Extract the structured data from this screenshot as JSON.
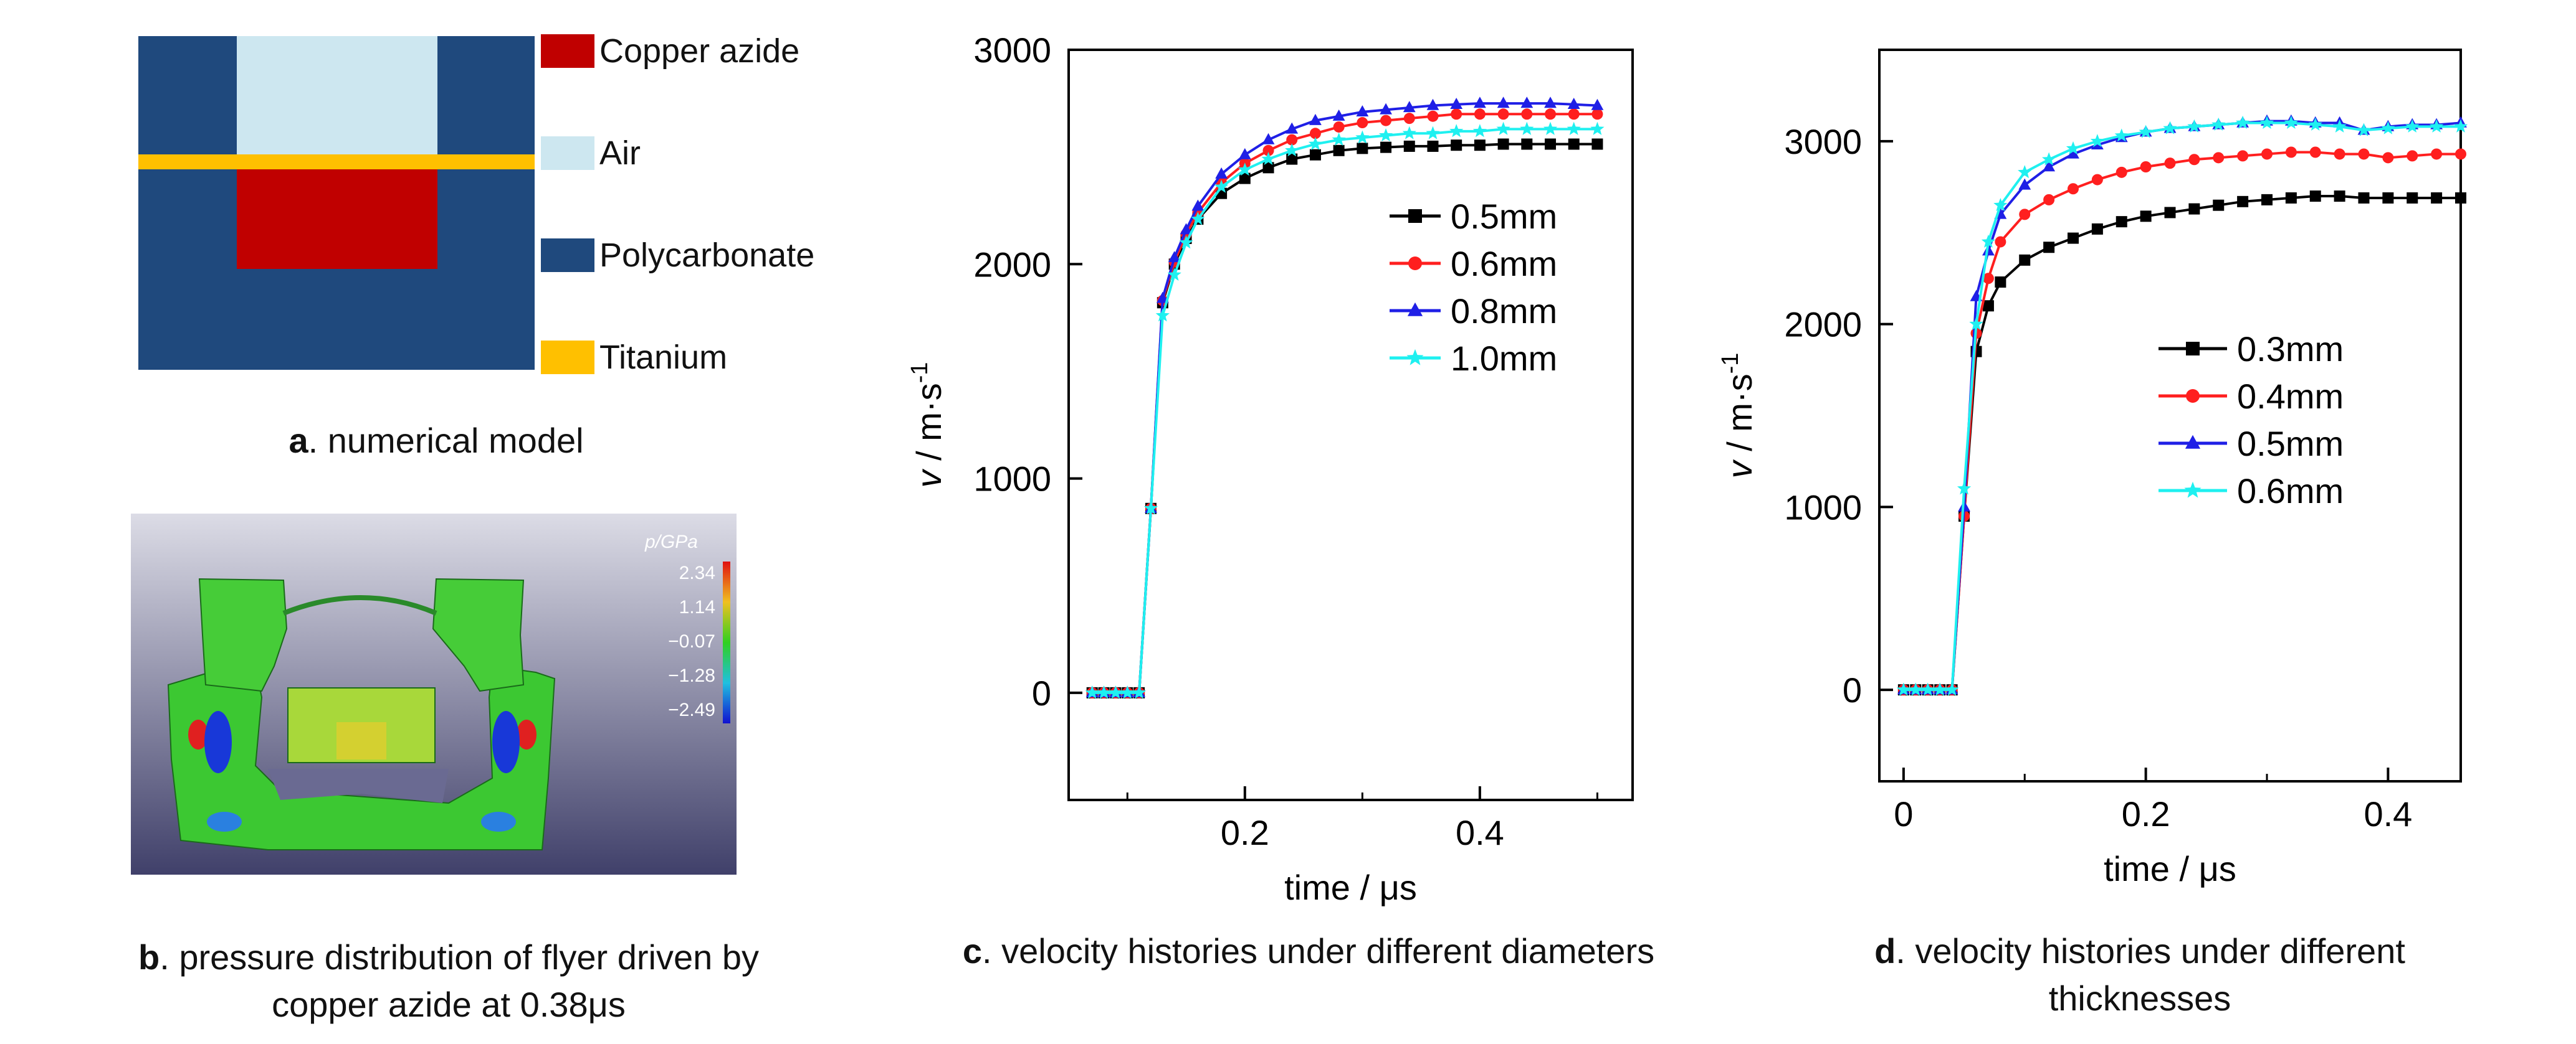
{
  "panel_a": {
    "letter": "a",
    "caption": ". numerical model",
    "legend": [
      {
        "label": "Copper azide",
        "color": "#c00000"
      },
      {
        "label": "Air",
        "color": "#cde7f0"
      },
      {
        "label": "Polycarbonate",
        "color": "#1f497d"
      },
      {
        "label": "Titanium",
        "color": "#ffc000"
      }
    ]
  },
  "panel_b": {
    "letter": "b",
    "caption_line1": ". pressure distribution of flyer driven by",
    "caption_line2": "copper azide at 0.38μs",
    "colorbar_title": "p/GPa",
    "colorbar_ticks": [
      "2.34",
      "1.14",
      "−0.07",
      "−1.28",
      "−2.49"
    ]
  },
  "chart_data": [
    {
      "id": "c",
      "type": "line",
      "letter": "c",
      "caption": ". velocity histories under different diameters",
      "xlabel": "time / μs",
      "ylabel_v": "v",
      "ylabel_unit": " / m·s",
      "ylabel_exp": "-1",
      "xlim": [
        0.05,
        0.53
      ],
      "ylim": [
        -500,
        3000
      ],
      "xticks": [
        0.2,
        0.4
      ],
      "xtick_labels": [
        "0.2",
        "0.4"
      ],
      "yticks": [
        0,
        1000,
        2000,
        3000
      ],
      "ytick_labels": [
        "0",
        "1000",
        "2000",
        "3000"
      ],
      "series": [
        {
          "name": "0.5mm",
          "color": "#000000",
          "marker": "square",
          "x": [
            0.07,
            0.08,
            0.09,
            0.1,
            0.11,
            0.12,
            0.13,
            0.14,
            0.15,
            0.16,
            0.18,
            0.2,
            0.22,
            0.24,
            0.26,
            0.28,
            0.3,
            0.32,
            0.34,
            0.36,
            0.38,
            0.4,
            0.42,
            0.44,
            0.46,
            0.48,
            0.5
          ],
          "y": [
            0,
            0,
            0,
            0,
            0,
            860,
            1820,
            2000,
            2120,
            2210,
            2330,
            2400,
            2450,
            2490,
            2510,
            2530,
            2540,
            2545,
            2550,
            2550,
            2555,
            2555,
            2560,
            2560,
            2560,
            2560,
            2560
          ]
        },
        {
          "name": "0.6mm",
          "color": "#ff1f1f",
          "marker": "circle",
          "x": [
            0.07,
            0.08,
            0.09,
            0.1,
            0.11,
            0.12,
            0.13,
            0.14,
            0.15,
            0.16,
            0.18,
            0.2,
            0.22,
            0.24,
            0.26,
            0.28,
            0.3,
            0.32,
            0.34,
            0.36,
            0.38,
            0.4,
            0.42,
            0.44,
            0.46,
            0.48,
            0.5
          ],
          "y": [
            0,
            0,
            0,
            0,
            0,
            860,
            1830,
            2010,
            2140,
            2240,
            2380,
            2470,
            2530,
            2580,
            2610,
            2640,
            2660,
            2670,
            2680,
            2690,
            2700,
            2700,
            2700,
            2700,
            2700,
            2700,
            2700
          ]
        },
        {
          "name": "0.8mm",
          "color": "#1f1fe6",
          "marker": "triangle",
          "x": [
            0.07,
            0.08,
            0.09,
            0.1,
            0.11,
            0.12,
            0.13,
            0.14,
            0.15,
            0.16,
            0.18,
            0.2,
            0.22,
            0.24,
            0.26,
            0.28,
            0.3,
            0.32,
            0.34,
            0.36,
            0.38,
            0.4,
            0.42,
            0.44,
            0.46,
            0.48,
            0.5
          ],
          "y": [
            0,
            0,
            0,
            0,
            0,
            860,
            1840,
            2030,
            2160,
            2270,
            2420,
            2510,
            2580,
            2630,
            2670,
            2690,
            2710,
            2720,
            2730,
            2740,
            2745,
            2750,
            2750,
            2750,
            2750,
            2745,
            2740
          ]
        },
        {
          "name": "1.0mm",
          "color": "#1ff0f0",
          "marker": "star",
          "x": [
            0.07,
            0.08,
            0.09,
            0.1,
            0.11,
            0.12,
            0.13,
            0.14,
            0.15,
            0.16,
            0.18,
            0.2,
            0.22,
            0.24,
            0.26,
            0.28,
            0.3,
            0.32,
            0.34,
            0.36,
            0.38,
            0.4,
            0.42,
            0.44,
            0.46,
            0.48,
            0.5
          ],
          "y": [
            0,
            0,
            0,
            0,
            0,
            860,
            1760,
            1950,
            2100,
            2210,
            2360,
            2440,
            2490,
            2530,
            2560,
            2580,
            2590,
            2600,
            2610,
            2610,
            2620,
            2620,
            2630,
            2630,
            2630,
            2630,
            2630
          ]
        }
      ]
    },
    {
      "id": "d",
      "type": "line",
      "letter": "d",
      "caption_line1": ". velocity histories under different",
      "caption_line2": "thicknesses",
      "xlabel": "time / μs",
      "ylabel_v": "v",
      "ylabel_unit": " / m·s",
      "ylabel_exp": "-1",
      "xlim": [
        -0.02,
        0.46
      ],
      "ylim": [
        -500,
        3500
      ],
      "xticks": [
        0,
        0.2,
        0.4
      ],
      "xtick_labels": [
        "0",
        "0.2",
        "0.4"
      ],
      "yticks": [
        0,
        1000,
        2000,
        3000
      ],
      "ytick_labels": [
        "0",
        "1000",
        "2000",
        "3000"
      ],
      "series": [
        {
          "name": "0.3mm",
          "color": "#000000",
          "marker": "square",
          "x": [
            0,
            0.01,
            0.02,
            0.03,
            0.04,
            0.05,
            0.06,
            0.07,
            0.08,
            0.1,
            0.12,
            0.14,
            0.16,
            0.18,
            0.2,
            0.22,
            0.24,
            0.26,
            0.28,
            0.3,
            0.32,
            0.34,
            0.36,
            0.38,
            0.4,
            0.42,
            0.44,
            0.46
          ],
          "y": [
            0,
            0,
            0,
            0,
            0,
            950,
            1850,
            2100,
            2230,
            2350,
            2420,
            2470,
            2520,
            2560,
            2590,
            2610,
            2630,
            2650,
            2670,
            2680,
            2690,
            2700,
            2700,
            2690,
            2690,
            2690,
            2690,
            2690
          ]
        },
        {
          "name": "0.4mm",
          "color": "#ff1f1f",
          "marker": "circle",
          "x": [
            0,
            0.01,
            0.02,
            0.03,
            0.04,
            0.05,
            0.06,
            0.07,
            0.08,
            0.1,
            0.12,
            0.14,
            0.16,
            0.18,
            0.2,
            0.22,
            0.24,
            0.26,
            0.28,
            0.3,
            0.32,
            0.34,
            0.36,
            0.38,
            0.4,
            0.42,
            0.44,
            0.46
          ],
          "y": [
            0,
            0,
            0,
            0,
            0,
            950,
            1950,
            2250,
            2450,
            2600,
            2680,
            2740,
            2790,
            2830,
            2860,
            2880,
            2900,
            2910,
            2920,
            2930,
            2940,
            2940,
            2930,
            2930,
            2910,
            2920,
            2930,
            2930
          ]
        },
        {
          "name": "0.5mm",
          "color": "#1f1fe6",
          "marker": "triangle",
          "x": [
            0,
            0.01,
            0.02,
            0.03,
            0.04,
            0.05,
            0.06,
            0.07,
            0.08,
            0.1,
            0.12,
            0.14,
            0.16,
            0.18,
            0.2,
            0.22,
            0.24,
            0.26,
            0.28,
            0.3,
            0.32,
            0.34,
            0.36,
            0.38,
            0.4,
            0.42,
            0.44,
            0.46
          ],
          "y": [
            0,
            0,
            0,
            0,
            0,
            1000,
            2150,
            2400,
            2600,
            2760,
            2860,
            2930,
            2980,
            3020,
            3050,
            3070,
            3080,
            3090,
            3100,
            3110,
            3110,
            3100,
            3100,
            3060,
            3080,
            3090,
            3090,
            3100
          ]
        },
        {
          "name": "0.6mm",
          "color": "#1ff0f0",
          "marker": "star",
          "x": [
            0,
            0.01,
            0.02,
            0.03,
            0.04,
            0.05,
            0.06,
            0.07,
            0.08,
            0.1,
            0.12,
            0.14,
            0.16,
            0.18,
            0.2,
            0.22,
            0.24,
            0.26,
            0.28,
            0.3,
            0.32,
            0.34,
            0.36,
            0.38,
            0.4,
            0.42,
            0.44,
            0.46
          ],
          "y": [
            0,
            0,
            0,
            0,
            0,
            1100,
            2000,
            2450,
            2650,
            2830,
            2900,
            2960,
            3000,
            3030,
            3050,
            3070,
            3080,
            3090,
            3100,
            3100,
            3100,
            3090,
            3080,
            3060,
            3070,
            3080,
            3080,
            3080
          ]
        }
      ]
    }
  ]
}
